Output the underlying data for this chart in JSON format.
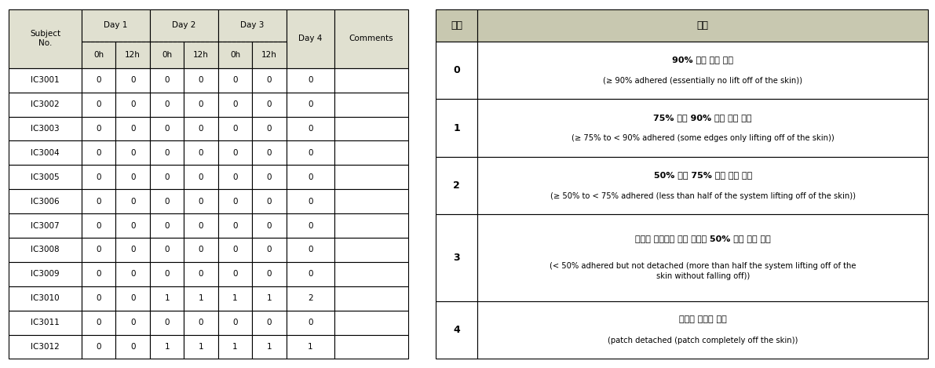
{
  "left_table": {
    "header_bg": "#e0e0d0",
    "subjects": [
      "IC3001",
      "IC3002",
      "IC3003",
      "IC3004",
      "IC3005",
      "IC3006",
      "IC3007",
      "IC3008",
      "IC3009",
      "IC3010",
      "IC3011",
      "IC3012"
    ],
    "data": [
      [
        0,
        0,
        0,
        0,
        0,
        0,
        0
      ],
      [
        0,
        0,
        0,
        0,
        0,
        0,
        0
      ],
      [
        0,
        0,
        0,
        0,
        0,
        0,
        0
      ],
      [
        0,
        0,
        0,
        0,
        0,
        0,
        0
      ],
      [
        0,
        0,
        0,
        0,
        0,
        0,
        0
      ],
      [
        0,
        0,
        0,
        0,
        0,
        0,
        0
      ],
      [
        0,
        0,
        0,
        0,
        0,
        0,
        0
      ],
      [
        0,
        0,
        0,
        0,
        0,
        0,
        0
      ],
      [
        0,
        0,
        0,
        0,
        0,
        0,
        0
      ],
      [
        0,
        0,
        1,
        1,
        1,
        1,
        2
      ],
      [
        0,
        0,
        0,
        0,
        0,
        0,
        0
      ],
      [
        0,
        0,
        1,
        1,
        1,
        1,
        1
      ]
    ]
  },
  "right_table": {
    "header_bg": "#c8c8b0",
    "row_heights": [
      0.8,
      0.8,
      0.8,
      1.2,
      0.8
    ]
  },
  "bg_color": "#ffffff",
  "cell_bg": "#ffffff",
  "border_color": "#000000"
}
